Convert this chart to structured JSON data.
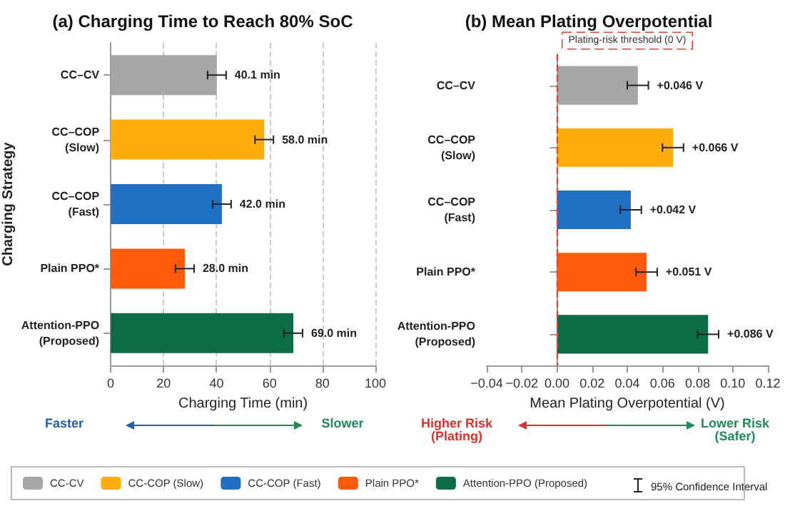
{
  "chart_data": [
    {
      "type": "bar",
      "orientation": "horizontal",
      "stacked": true,
      "title": "(a) Charging Time to Reach 80% SoC",
      "xlabel": "Charging Time (min)",
      "ylabel": "Charging Strategy",
      "categories": [
        "CC–CV",
        "CC–COP\n(Slow)",
        "CC–COP\n(Fast)",
        "Plain PPO*",
        "Attention-PPO\n(Proposed)"
      ],
      "series": [
        {
          "name": "CC-CV",
          "color": "#a6a6a6",
          "values": [
            40.1,
            null,
            null,
            null,
            null
          ],
          "errors": [
            3.5,
            null,
            null,
            null,
            null
          ],
          "value_labels": [
            "40.1 min",
            null,
            null,
            null,
            null
          ]
        },
        {
          "name": "CC-COP (Slow)",
          "color": "#ffad0a",
          "values": [
            null,
            58.0,
            null,
            null,
            null
          ],
          "errors": [
            null,
            3.5,
            null,
            null,
            null
          ],
          "value_labels": [
            null,
            "58.0 min",
            null,
            null,
            null
          ]
        },
        {
          "name": "CC-COP (Fast)",
          "color": "#1f6fc5",
          "values": [
            null,
            null,
            42.0,
            null,
            null
          ],
          "errors": [
            null,
            null,
            3.5,
            null,
            null
          ],
          "value_labels": [
            null,
            null,
            "42.0 min",
            null,
            null
          ]
        },
        {
          "name": "Plain PPO*",
          "color": "#ff5a0a",
          "values": [
            null,
            null,
            null,
            28.0,
            null
          ],
          "errors": [
            null,
            null,
            null,
            3.5,
            null
          ],
          "value_labels": [
            null,
            null,
            null,
            "28.0 min",
            null
          ]
        },
        {
          "name": "Attention-PPO (Proposed)",
          "color": "#0d6b47",
          "values": [
            null,
            null,
            null,
            null,
            69.0
          ],
          "errors": [
            null,
            null,
            null,
            null,
            3.5
          ],
          "value_labels": [
            null,
            null,
            null,
            null,
            "69.0 min"
          ]
        }
      ],
      "xlim": [
        0,
        100
      ],
      "xticks": [
        0,
        20,
        40,
        60,
        80,
        100
      ],
      "grid": "x",
      "legend": "bottom",
      "annotations": [
        "Faster",
        "Slower",
        "95% Confidence Interval"
      ]
    },
    {
      "type": "bar",
      "orientation": "horizontal",
      "stacked": true,
      "title": "(b) Mean Plating Overpotential",
      "xlabel": "Mean Plating Overpotential (V)",
      "categories": [
        "CC–CV",
        "CC–COP\n(Slow)",
        "CC–COP\n(Fast)",
        "Plain PPO*",
        "Attention-PPO\n(Proposed)"
      ],
      "series": [
        {
          "color": "#a6a6a6",
          "values": [
            0.046,
            null,
            null,
            null,
            null
          ],
          "errors": [
            0.006,
            null,
            null,
            null,
            null
          ],
          "value_labels": [
            "+0.046 V",
            null,
            null,
            null,
            null
          ]
        },
        {
          "color": "#ffad0a",
          "values": [
            null,
            0.066,
            null,
            null,
            null
          ],
          "errors": [
            null,
            0.006,
            null,
            null,
            null
          ],
          "value_labels": [
            null,
            "+0.066 V",
            null,
            null,
            null
          ]
        },
        {
          "color": "#1f6fc5",
          "values": [
            null,
            null,
            0.042,
            null,
            null
          ],
          "errors": [
            null,
            null,
            0.006,
            null,
            null
          ],
          "value_labels": [
            null,
            null,
            "+0.042 V",
            null,
            null
          ]
        },
        {
          "color": "#ff5a0a",
          "values": [
            null,
            null,
            null,
            0.051,
            null
          ],
          "errors": [
            null,
            null,
            null,
            0.006,
            null
          ],
          "value_labels": [
            null,
            null,
            null,
            "+0.051 V",
            null
          ]
        },
        {
          "color": "#0d6b47",
          "values": [
            null,
            null,
            null,
            null,
            0.086
          ],
          "errors": [
            null,
            null,
            null,
            null,
            0.006
          ],
          "value_labels": [
            null,
            null,
            null,
            null,
            "+0.086 V"
          ]
        }
      ],
      "xlim": [
        -0.04,
        0.12
      ],
      "xticks": [
        {
          "value": -0.04,
          "label": "−0.04"
        },
        {
          "value": -0.02,
          "label": "−0.02"
        },
        {
          "value": 0,
          "label": "0.00"
        },
        {
          "value": 0.02,
          "label": "0.02"
        },
        {
          "value": 0.04,
          "label": "0.04"
        },
        {
          "value": 0.06,
          "label": "0.06"
        },
        {
          "value": 0.08,
          "label": "0.08"
        },
        {
          "value": 0.1,
          "label": "0.10"
        },
        {
          "value": 0.12,
          "label": "0.12"
        }
      ],
      "ref_lines": [
        {
          "axis": "x",
          "value": 0,
          "label": "Plating-risk threshold (0 V)",
          "color": "#e8413a",
          "line_style": "dashed"
        }
      ],
      "annotations": [
        "Higher Risk\n(Plating)",
        "Lower Risk\n(Safer)"
      ]
    }
  ]
}
